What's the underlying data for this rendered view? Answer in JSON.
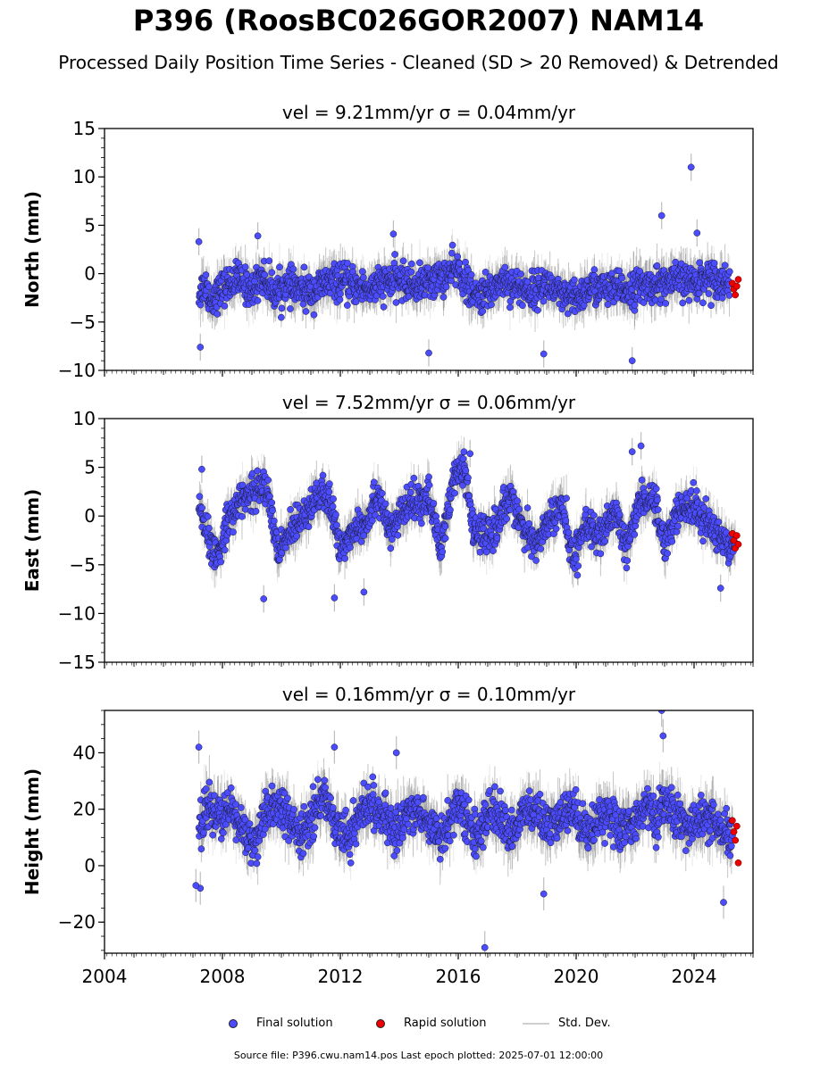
{
  "title": "P396 (RoosBC026GOR2007) NAM14",
  "subtitle": "Processed Daily Position Time Series - Cleaned (SD > 20 Removed) & Detrended",
  "footer": "Source file: P396.cwu.nam14.pos  Last epoch plotted: 2025-07-01 12:00:00",
  "legend": [
    {
      "label": "Final solution",
      "color": "#4c4cff"
    },
    {
      "label": "Rapid solution",
      "color": "#ee0000"
    },
    {
      "label": "Std. Dev.",
      "color": "#cfcfcf"
    }
  ],
  "colors": {
    "final": "#4c4cff",
    "rapid": "#ee0000",
    "stddev": "#bdbdbd",
    "marker_edge": "#1a1a33"
  },
  "chart_data": [
    {
      "type": "scatter",
      "panel_title": "vel = 9.21mm/yr   σ = 0.04mm/yr",
      "ylabel": "North (mm)",
      "xlim": [
        2004,
        2026
      ],
      "ylim": [
        -10,
        15
      ],
      "yticks": [
        -10,
        -5,
        0,
        5,
        10,
        15
      ],
      "xticks": [],
      "series": [
        {
          "key": "final",
          "x": [
            2007.2,
            2007.4,
            2007.6,
            2008.0,
            2008.5,
            2009.0,
            2009.3,
            2009.8,
            2010.1,
            2010.5,
            2011.0,
            2011.5,
            2012.0,
            2012.5,
            2013.0,
            2013.5,
            2014.0,
            2014.5,
            2015.0,
            2015.5,
            2016.0,
            2016.5,
            2017.0,
            2017.5,
            2018.0,
            2018.5,
            2019.0,
            2019.5,
            2020.0,
            2020.5,
            2021.0,
            2021.5,
            2022.0,
            2022.5,
            2023.0,
            2023.5,
            2024.0,
            2024.5,
            2025.0
          ],
          "y": [
            -2.1,
            -1.0,
            -2.8,
            -1.5,
            -0.5,
            -1.8,
            -0.2,
            -2.0,
            -1.2,
            -1.6,
            -1.9,
            -1.0,
            -0.8,
            -1.3,
            -1.6,
            -0.9,
            -0.6,
            -1.2,
            -0.8,
            -0.3,
            0.5,
            -2.4,
            -2.0,
            -0.6,
            -1.4,
            -1.8,
            -1.0,
            -2.5,
            -2.6,
            -1.4,
            -1.6,
            -1.7,
            -1.5,
            -1.2,
            -1.0,
            -0.7,
            -0.9,
            -0.3,
            -0.8
          ]
        },
        {
          "key": "outliers",
          "x": [
            2007.2,
            2007.25,
            2015.0,
            2018.9,
            2021.9,
            2022.9,
            2023.9,
            2024.1,
            2009.2,
            2013.8
          ],
          "y": [
            3.3,
            -7.6,
            -8.2,
            -8.3,
            -9.0,
            6.0,
            11.0,
            4.2,
            3.9,
            4.1
          ]
        },
        {
          "key": "rapid",
          "x": [
            2025.3,
            2025.35,
            2025.4,
            2025.45,
            2025.5
          ],
          "y": [
            -1.0,
            -1.6,
            -2.2,
            -1.3,
            -0.6
          ]
        }
      ]
    },
    {
      "type": "scatter",
      "panel_title": "vel = 7.52mm/yr   σ = 0.06mm/yr",
      "ylabel": "East (mm)",
      "xlim": [
        2004,
        2026
      ],
      "ylim": [
        -15,
        10
      ],
      "yticks": [
        -15,
        -10,
        -5,
        0,
        5,
        10
      ],
      "xticks": [],
      "series": [
        {
          "key": "final",
          "x": [
            2007.2,
            2007.5,
            2007.8,
            2008.2,
            2008.6,
            2009.0,
            2009.5,
            2009.9,
            2010.3,
            2010.8,
            2011.2,
            2011.6,
            2012.0,
            2012.5,
            2012.9,
            2013.3,
            2013.7,
            2014.1,
            2014.6,
            2015.0,
            2015.4,
            2015.8,
            2016.2,
            2016.5,
            2017.0,
            2017.4,
            2017.8,
            2018.2,
            2018.6,
            2019.0,
            2019.5,
            2019.9,
            2020.3,
            2020.8,
            2021.3,
            2021.7,
            2022.1,
            2022.6,
            2023.0,
            2023.4,
            2023.8,
            2024.3,
            2024.8,
            2025.2
          ],
          "y": [
            1.0,
            -2.5,
            -4.5,
            0.0,
            1.5,
            2.5,
            3.0,
            -4.0,
            -1.5,
            0.5,
            2.0,
            1.8,
            -3.5,
            -1.0,
            -0.5,
            2.5,
            -2.0,
            0.5,
            1.5,
            2.0,
            -3.5,
            3.5,
            5.0,
            -1.5,
            -2.0,
            -0.5,
            2.5,
            -1.5,
            -3.0,
            -0.8,
            1.0,
            -4.5,
            -0.5,
            -2.5,
            0.5,
            -3.5,
            1.5,
            2.0,
            -3.0,
            0.5,
            1.0,
            0.0,
            -2.0,
            -2.8
          ]
        },
        {
          "key": "outliers",
          "x": [
            2007.3,
            2009.4,
            2011.8,
            2016.4,
            2021.9,
            2022.2,
            2024.9,
            2012.8
          ],
          "y": [
            4.8,
            -8.5,
            -8.4,
            6.4,
            6.6,
            7.2,
            -7.4,
            -7.8
          ]
        },
        {
          "key": "rapid",
          "x": [
            2025.3,
            2025.35,
            2025.4,
            2025.45,
            2025.5
          ],
          "y": [
            -1.8,
            -2.5,
            -3.3,
            -2.0,
            -2.9
          ]
        }
      ]
    },
    {
      "type": "scatter",
      "panel_title": "vel = 0.16mm/yr   σ = 0.10mm/yr",
      "ylabel": "Height (mm)",
      "xlim": [
        2004,
        2026
      ],
      "ylim": [
        -31,
        55
      ],
      "yticks": [
        -20,
        0,
        20,
        40
      ],
      "xticks": [
        "2004",
        "2008",
        "2012",
        "2016",
        "2020",
        "2024"
      ],
      "series": [
        {
          "key": "final",
          "x": [
            2007.2,
            2007.5,
            2007.9,
            2008.3,
            2008.7,
            2009.1,
            2009.5,
            2009.9,
            2010.3,
            2010.7,
            2011.1,
            2011.5,
            2011.9,
            2012.3,
            2012.7,
            2013.1,
            2013.5,
            2013.9,
            2014.3,
            2014.7,
            2015.1,
            2015.5,
            2015.9,
            2016.3,
            2016.7,
            2017.1,
            2017.5,
            2017.9,
            2018.3,
            2018.7,
            2019.1,
            2019.5,
            2019.9,
            2020.3,
            2020.7,
            2021.1,
            2021.5,
            2021.9,
            2022.3,
            2022.7,
            2023.1,
            2023.5,
            2023.9,
            2024.3,
            2024.7,
            2025.1
          ],
          "y": [
            10,
            22,
            16,
            20,
            12,
            8,
            18,
            22,
            15,
            10,
            20,
            24,
            14,
            10,
            19,
            22,
            16,
            12,
            20,
            18,
            14,
            10,
            22,
            16,
            10,
            21,
            15,
            12,
            20,
            18,
            13,
            17,
            21,
            12,
            16,
            20,
            11,
            15,
            21,
            17,
            22,
            16,
            13,
            18,
            14,
            10
          ]
        },
        {
          "key": "outliers",
          "x": [
            2007.2,
            2007.25,
            2011.8,
            2013.9,
            2016.9,
            2018.9,
            2022.9,
            2022.95,
            2025.0,
            2007.1
          ],
          "y": [
            42,
            -8,
            42,
            40,
            -29,
            -10,
            55,
            46,
            -13,
            -7
          ]
        },
        {
          "key": "rapid",
          "x": [
            2025.3,
            2025.35,
            2025.4,
            2025.45,
            2025.5
          ],
          "y": [
            16,
            12,
            9,
            14,
            1
          ]
        }
      ]
    }
  ]
}
